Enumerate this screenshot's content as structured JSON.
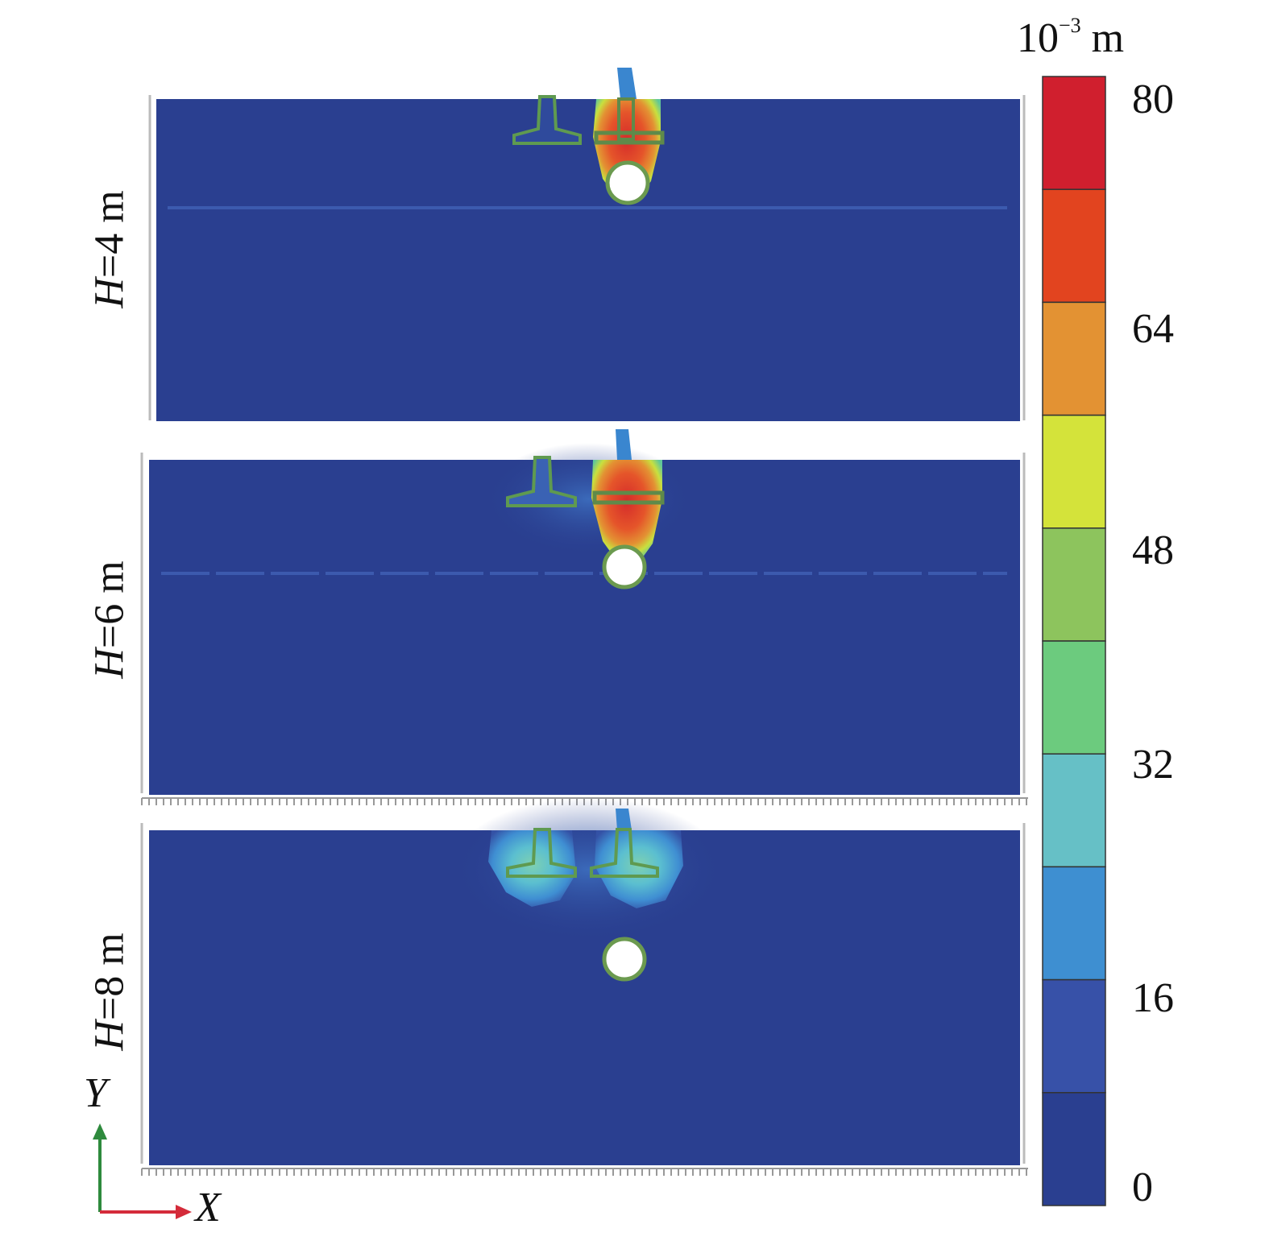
{
  "panels": [
    {
      "label_var": "H",
      "label_rest": "=4 m"
    },
    {
      "label_var": "H",
      "label_rest": "=6 m"
    },
    {
      "label_var": "H",
      "label_rest": "=8 m"
    }
  ],
  "colorbar": {
    "unit_base": "10",
    "unit_exp": "−3",
    "unit_rest": " m",
    "ticks": [
      "80",
      "64",
      "48",
      "32",
      "16",
      "0"
    ],
    "colors": [
      "#d01f2e",
      "#e2441f",
      "#e39233",
      "#d4e33a",
      "#8dc45d",
      "#6ccb7e",
      "#66c0c6",
      "#3e8fd1",
      "#3751a8",
      "#2a3f90"
    ]
  },
  "axes": {
    "y": "Y",
    "x": "X"
  },
  "colors": {
    "field": "#2a3f90",
    "y_arrow": "#2e8a3d",
    "x_arrow": "#d42b3a"
  }
}
